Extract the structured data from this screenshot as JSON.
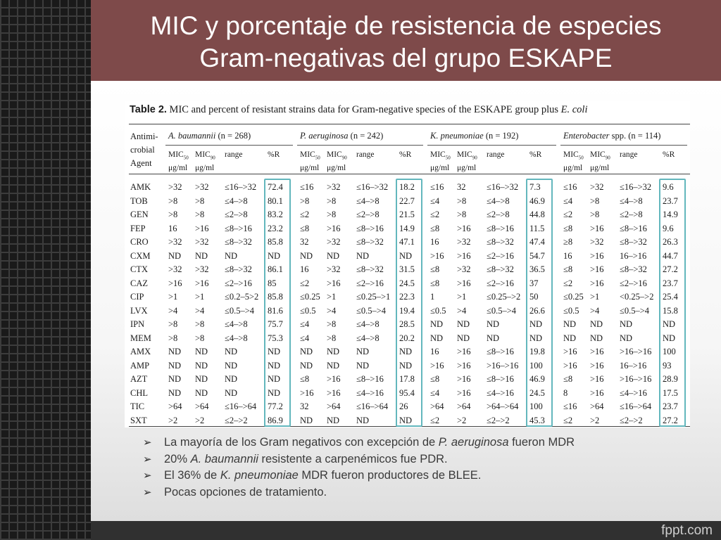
{
  "slide": {
    "title_line1": "MIC y porcentaje de resistencia de especies",
    "title_line2": "Gram-negativas del grupo ESKAPE",
    "footer_logo": "fppt.com"
  },
  "table": {
    "caption_bold": "Table 2.",
    "caption_text": " MIC and percent of resistant strains data for Gram-negative species of the ESKAPE group plus ",
    "caption_italic": "E. coli",
    "agent_header": [
      "Antimi-",
      "crobial",
      "Agent"
    ],
    "groups": [
      {
        "species": "A. baumannii",
        "n": " (n = 268)"
      },
      {
        "species": "P. aeruginosa",
        "n": " (n = 242)"
      },
      {
        "species": "K. pneumoniae",
        "n": " (n = 192)"
      },
      {
        "species": "Enterobacter",
        "n": " spp. (n = 114)"
      }
    ],
    "sub_headers": {
      "mic": "MIC",
      "mic50_sub": "50",
      "mic90_sub": "90",
      "unit": "μg/ml",
      "range": "range",
      "pct": "%R"
    },
    "rows": [
      {
        "agent": "AMK",
        "ab": [
          ">32",
          ">32",
          "≤16–>32",
          "72.4"
        ],
        "pa": [
          "≤16",
          ">32",
          "≤16–>32",
          "18.2"
        ],
        "kp": [
          "≤16",
          "32",
          "≤16–>32",
          "7.3"
        ],
        "en": [
          "≤16",
          ">32",
          "≤16–>32",
          "9.6"
        ]
      },
      {
        "agent": "TOB",
        "ab": [
          ">8",
          ">8",
          "≤4–>8",
          "80.1"
        ],
        "pa": [
          ">8",
          ">8",
          "≤4–>8",
          "22.7"
        ],
        "kp": [
          "≤4",
          ">8",
          "≤4–>8",
          "46.9"
        ],
        "en": [
          "≤4",
          ">8",
          "≤4–>8",
          "23.7"
        ]
      },
      {
        "agent": "GEN",
        "ab": [
          ">8",
          ">8",
          "≤2–>8",
          "83.2"
        ],
        "pa": [
          "≤2",
          ">8",
          "≤2–>8",
          "21.5"
        ],
        "kp": [
          "≤2",
          ">8",
          "≤2–>8",
          "44.8"
        ],
        "en": [
          "≤2",
          ">8",
          "≤2–>8",
          "14.9"
        ]
      },
      {
        "agent": "FEP",
        "ab": [
          "16",
          ">16",
          "≤8–>16",
          "23.2"
        ],
        "pa": [
          "≤8",
          ">16",
          "≤8–>16",
          "14.9"
        ],
        "kp": [
          "≤8",
          ">16",
          "≤8–>16",
          "11.5"
        ],
        "en": [
          "≤8",
          ">16",
          "≤8–>16",
          "9.6"
        ]
      },
      {
        "agent": "CRO",
        "ab": [
          ">32",
          ">32",
          "≤8–>32",
          "85.8"
        ],
        "pa": [
          "32",
          ">32",
          "≤8–>32",
          "47.1"
        ],
        "kp": [
          "16",
          ">32",
          "≤8–>32",
          "47.4"
        ],
        "en": [
          "≥8",
          ">32",
          "≤8–>32",
          "26.3"
        ]
      },
      {
        "agent": "CXM",
        "ab": [
          "ND",
          "ND",
          "ND",
          "ND"
        ],
        "pa": [
          "ND",
          "ND",
          "ND",
          "ND"
        ],
        "kp": [
          ">16",
          ">16",
          "≤2–>16",
          "54.7"
        ],
        "en": [
          "16",
          ">16",
          "16–>16",
          "44.7"
        ]
      },
      {
        "agent": "CTX",
        "ab": [
          ">32",
          ">32",
          "≤8–>32",
          "86.1"
        ],
        "pa": [
          "16",
          ">32",
          "≤8–>32",
          "31.5"
        ],
        "kp": [
          "≤8",
          ">32",
          "≤8–>32",
          "36.5"
        ],
        "en": [
          "≤8",
          ">16",
          "≤8–>32",
          "27.2"
        ]
      },
      {
        "agent": "CAZ",
        "ab": [
          ">16",
          ">16",
          "≤2–>16",
          "85"
        ],
        "pa": [
          "≤2",
          ">16",
          "≤2–>16",
          "24.5"
        ],
        "kp": [
          "≤8",
          ">16",
          "≤2–>16",
          "37"
        ],
        "en": [
          "≤2",
          ">16",
          "≤2–>16",
          "23.7"
        ]
      },
      {
        "agent": "CIP",
        "ab": [
          ">1",
          ">1",
          "≤0.2–5>2",
          "85.8"
        ],
        "pa": [
          "≤0.25",
          ">1",
          "≤0.25–>1",
          "22.3"
        ],
        "kp": [
          "1",
          ">1",
          "≤0.25–>2",
          "50"
        ],
        "en": [
          "≤0.25",
          ">1",
          "<0.25–>2",
          "25.4"
        ]
      },
      {
        "agent": "LVX",
        "ab": [
          ">4",
          ">4",
          "≤0.5–>4",
          "81.6"
        ],
        "pa": [
          "≤0.5",
          ">4",
          "≤0.5–>4",
          "19.4"
        ],
        "kp": [
          "≤0.5",
          ">4",
          "≤0.5–>4",
          "26.6"
        ],
        "en": [
          "≤0.5",
          ">4",
          "≤0.5–>4",
          "15.8"
        ]
      },
      {
        "agent": "IPN",
        "ab": [
          ">8",
          ">8",
          "≤4–>8",
          "75.7"
        ],
        "pa": [
          "≤4",
          ">8",
          "≤4–>8",
          "28.5"
        ],
        "kp": [
          "ND",
          "ND",
          "ND",
          "ND"
        ],
        "en": [
          "ND",
          "ND",
          "ND",
          "ND"
        ]
      },
      {
        "agent": "MEM",
        "ab": [
          ">8",
          ">8",
          "≤4–>8",
          "75.3"
        ],
        "pa": [
          "≤4",
          ">8",
          "≤4–>8",
          "20.2"
        ],
        "kp": [
          "ND",
          "ND",
          "ND",
          "ND"
        ],
        "en": [
          "ND",
          "ND",
          "ND",
          "ND"
        ]
      },
      {
        "agent": "AMX",
        "ab": [
          "ND",
          "ND",
          "ND",
          "ND"
        ],
        "pa": [
          "ND",
          "ND",
          "ND",
          "ND"
        ],
        "kp": [
          "16",
          ">16",
          "≤8–>16",
          "19.8"
        ],
        "en": [
          ">16",
          ">16",
          ">16–>16",
          "100"
        ]
      },
      {
        "agent": "AMP",
        "ab": [
          "ND",
          "ND",
          "ND",
          "ND"
        ],
        "pa": [
          "ND",
          "ND",
          "ND",
          "ND"
        ],
        "kp": [
          ">16",
          ">16",
          ">16–>16",
          "100"
        ],
        "en": [
          ">16",
          ">16",
          "16–>16",
          "93"
        ]
      },
      {
        "agent": "AZT",
        "ab": [
          "ND",
          "ND",
          "ND",
          "ND"
        ],
        "pa": [
          "≤8",
          ">16",
          "≤8–>16",
          "17.8"
        ],
        "kp": [
          "≤8",
          ">16",
          "≤8–>16",
          "46.9"
        ],
        "en": [
          "≤8",
          ">16",
          ">16–>16",
          "28.9"
        ]
      },
      {
        "agent": "CHL",
        "ab": [
          "ND",
          "ND",
          "ND",
          "ND"
        ],
        "pa": [
          ">16",
          ">16",
          "≤4–>16",
          "95.4"
        ],
        "kp": [
          "≤4",
          ">16",
          "≤4–>16",
          "24.5"
        ],
        "en": [
          "8",
          ">16",
          "≤4–>16",
          "17.5"
        ]
      },
      {
        "agent": "TIC",
        "ab": [
          ">64",
          ">64",
          "≤16–>64",
          "77.2"
        ],
        "pa": [
          "32",
          ">64",
          "≤16–>64",
          "26"
        ],
        "kp": [
          ">64",
          ">64",
          ">64–>64",
          "100"
        ],
        "en": [
          "≤16",
          ">64",
          "≤16–>64",
          "23.7"
        ]
      },
      {
        "agent": "SXT",
        "ab": [
          ">2",
          ">2",
          "≤2–>2",
          "86.9"
        ],
        "pa": [
          "ND",
          "ND",
          "ND",
          "ND"
        ],
        "kp": [
          "≤2",
          ">2",
          "≤2–>2",
          "45.3"
        ],
        "en": [
          "≤2",
          ">2",
          "≤2–>2",
          "27.2"
        ]
      }
    ]
  },
  "bullets": [
    {
      "parts": [
        [
          "La mayoría de los Gram negativos con excepción de ",
          false
        ],
        [
          "P. aeruginosa",
          true
        ],
        [
          " fueron MDR",
          false
        ]
      ]
    },
    {
      "parts": [
        [
          "20% ",
          false
        ],
        [
          "A. baumannii",
          true
        ],
        [
          " resistente a carpenémicos fue PDR.",
          false
        ]
      ]
    },
    {
      "parts": [
        [
          "El 36% de ",
          false
        ],
        [
          "K. pneumoniae",
          true
        ],
        [
          " MDR fueron productores de BLEE.",
          false
        ]
      ]
    },
    {
      "parts": [
        [
          "Pocas opciones de tratamiento.",
          false
        ]
      ]
    }
  ],
  "icons": {
    "bullet": "arrow-bullet-icon",
    "bullet_glyph": "➢"
  },
  "colors": {
    "header": "#7e4a4a",
    "highlight_box": "#63b7bd",
    "background": "#2e2e2e"
  }
}
